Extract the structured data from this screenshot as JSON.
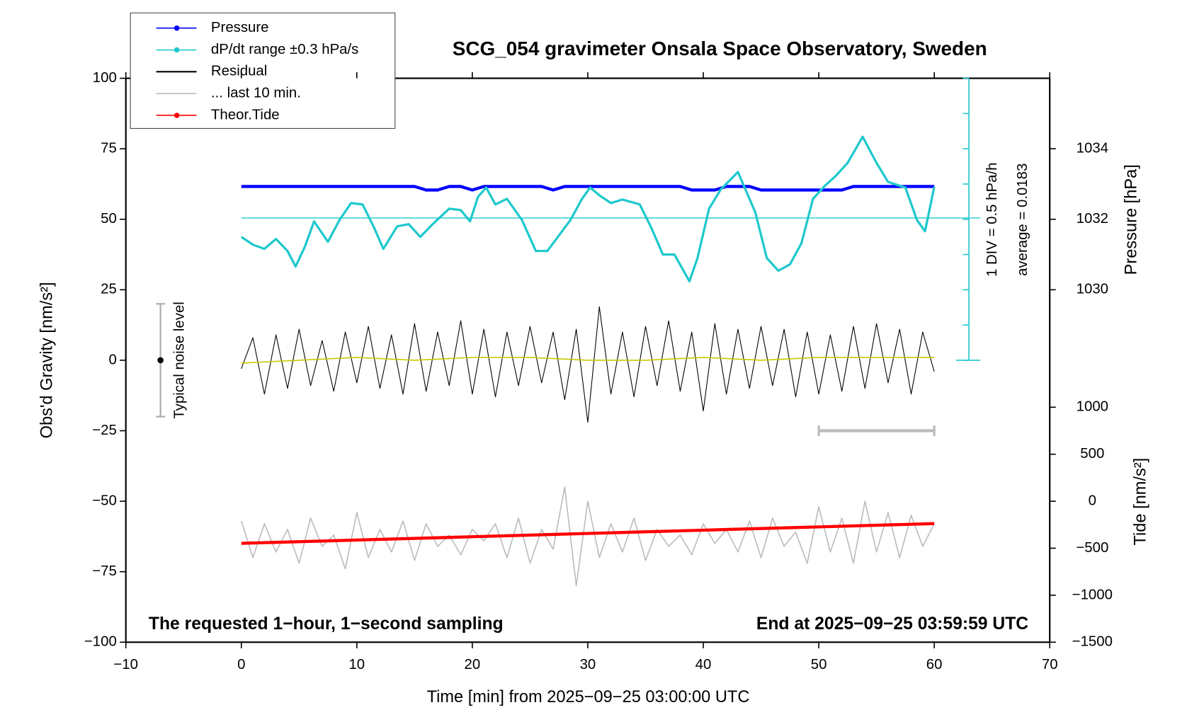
{
  "chart_data": {
    "type": "line",
    "title": "SCG_054 gravimeter Onsala Space Observatory, Sweden",
    "x_label": "Time [min] from 2025−09−25 03:00:00 UTC",
    "y_label": "Obs'd Gravity [nm/s²]",
    "y2_label": "Pressure [hPa]",
    "y4_label": "Tide [nm/s²]",
    "annotations": [
      "1 DIV = 0.5 hPa/h",
      "average = 0.0183",
      "Typical noise level",
      "The requested 1−hour, 1−second sampling",
      "End at 2025−09−25 03:59:59 UTC"
    ],
    "xlim": [
      -10,
      70
    ],
    "xticks": [
      {
        "value": -10,
        "label": "−10"
      },
      0,
      10,
      20,
      30,
      40,
      50,
      60,
      70
    ],
    "ylim": [
      -100,
      100
    ],
    "yticks": [
      {
        "value": -100,
        "label": "−100"
      },
      {
        "value": -75,
        "label": "−75"
      },
      {
        "value": -50,
        "label": "−50"
      },
      {
        "value": -25,
        "label": "−25"
      },
      0,
      25,
      50,
      75,
      100
    ],
    "y2lim": [
      1020,
      1036
    ],
    "y2ticks": [
      1030,
      1032,
      1034
    ],
    "y3lim": [
      -6,
      2
    ],
    "y3ticks": [
      -2,
      -1.5,
      -1,
      -0.5,
      0,
      0.5,
      1,
      1.5,
      2
    ],
    "y3_average": 0.0183,
    "y4lim": [
      -1500,
      4500
    ],
    "y4ticks": [
      {
        "value": -1500,
        "label": "−1500"
      },
      {
        "value": -1000,
        "label": "−1000"
      },
      {
        "value": -500,
        "label": "−500"
      },
      0,
      500,
      1000
    ],
    "noise_bar": {
      "x": -7,
      "low": -20,
      "high": 20,
      "center": 0
    },
    "last10_bar": {
      "x": [
        50,
        60
      ],
      "y": -25
    },
    "legend": "upper left",
    "series": [
      {
        "name": "Pressure",
        "color": "#0000ff",
        "axis": "y2",
        "x": [
          0,
          1,
          2,
          3,
          4,
          5,
          6,
          7,
          8,
          9,
          10,
          11,
          12,
          13,
          14,
          15,
          16,
          17,
          18,
          19,
          20,
          21,
          22,
          23,
          24,
          25,
          26,
          27,
          28,
          29,
          30,
          31,
          32,
          33,
          34,
          35,
          36,
          37,
          38,
          39,
          40,
          41,
          42,
          43,
          44,
          45,
          46,
          47,
          48,
          49,
          50,
          51,
          52,
          53,
          54,
          55,
          56,
          57,
          58,
          59,
          60
        ],
        "values": [
          1032.93,
          1032.93,
          1032.93,
          1032.93,
          1032.93,
          1032.93,
          1032.93,
          1032.93,
          1032.93,
          1032.93,
          1032.93,
          1032.93,
          1032.93,
          1032.93,
          1032.93,
          1032.93,
          1032.83,
          1032.83,
          1032.93,
          1032.93,
          1032.83,
          1032.93,
          1032.93,
          1032.93,
          1032.93,
          1032.93,
          1032.93,
          1032.83,
          1032.93,
          1032.93,
          1032.93,
          1032.93,
          1032.93,
          1032.93,
          1032.93,
          1032.93,
          1032.93,
          1032.93,
          1032.93,
          1032.83,
          1032.83,
          1032.83,
          1032.93,
          1032.93,
          1032.93,
          1032.83,
          1032.83,
          1032.83,
          1032.83,
          1032.83,
          1032.83,
          1032.83,
          1032.83,
          1032.93,
          1032.93,
          1032.93,
          1032.93,
          1032.93,
          1032.93,
          1032.93,
          1032.93
        ]
      },
      {
        "name": "dP/dt range ±0.3 hPa/s",
        "color": "#1ec8cc",
        "axis": "y3",
        "x": [
          0,
          1,
          2,
          3,
          4,
          4.7,
          5.5,
          6.3,
          7.5,
          8.5,
          9.5,
          10.5,
          11.5,
          12.3,
          13.5,
          14.5,
          15.5,
          16.5,
          18,
          19,
          19.8,
          20.5,
          21.2,
          22,
          23,
          24.3,
          25.5,
          26.5,
          27.5,
          28.5,
          29.5,
          30.2,
          31,
          32,
          33,
          34.5,
          35.5,
          36.5,
          37.5,
          38.8,
          39.5,
          40.5,
          41.5,
          43,
          44.5,
          45.5,
          46.5,
          47.5,
          48.5,
          49.5,
          50.5,
          51.5,
          52.5,
          53.8,
          55,
          56,
          57.5,
          58.5,
          59.2,
          60
        ],
        "values": [
          -0.25,
          -0.36,
          -0.42,
          -0.28,
          -0.45,
          -0.67,
          -0.39,
          -0.03,
          -0.32,
          -0.01,
          0.23,
          0.21,
          -0.12,
          -0.42,
          -0.1,
          -0.07,
          -0.25,
          -0.08,
          0.15,
          0.13,
          -0.03,
          0.32,
          0.45,
          0.21,
          0.29,
          -0.01,
          -0.45,
          -0.45,
          -0.23,
          -0.01,
          0.29,
          0.45,
          0.34,
          0.23,
          0.28,
          0.21,
          -0.12,
          -0.5,
          -0.5,
          -0.88,
          -0.55,
          0.15,
          0.42,
          0.67,
          0.1,
          -0.55,
          -0.73,
          -0.64,
          -0.34,
          0.29,
          0.47,
          0.62,
          0.8,
          1.17,
          0.8,
          0.53,
          0.45,
          -0.01,
          -0.17,
          0.46
        ]
      },
      {
        "name": "Residual",
        "color": "#000000",
        "axis": "y",
        "x": [
          0,
          1,
          2,
          3,
          4,
          5,
          6,
          7,
          8,
          9,
          10,
          11,
          12,
          13,
          14,
          15,
          16,
          17,
          18,
          19,
          20,
          21,
          22,
          23,
          24,
          25,
          26,
          27,
          28,
          29,
          30,
          31,
          32,
          33,
          34,
          35,
          36,
          37,
          38,
          39,
          40,
          41,
          42,
          43,
          44,
          45,
          46,
          47,
          48,
          49,
          50,
          51,
          52,
          53,
          54,
          55,
          56,
          57,
          58,
          59,
          60
        ],
        "values": [
          -3,
          8,
          -12,
          9,
          -10,
          11,
          -9,
          7,
          -11,
          10,
          -8,
          12,
          -10,
          9,
          -12,
          13,
          -11,
          10,
          -9,
          14,
          -12,
          11,
          -13,
          10,
          -9,
          12,
          -8,
          10,
          -14,
          11,
          -22,
          19,
          -12,
          10,
          -13,
          12,
          -9,
          14,
          -11,
          10,
          -18,
          13,
          -12,
          11,
          -10,
          12,
          -9,
          11,
          -13,
          10,
          -12,
          9,
          -11,
          12,
          -10,
          13,
          -8,
          11,
          -12,
          10,
          -4
        ]
      },
      {
        "name": "... last 10 min.",
        "color": "#bbbbbb",
        "axis": "y",
        "x": [
          0,
          1,
          2,
          3,
          4,
          5,
          6,
          7,
          8,
          9,
          10,
          11,
          12,
          13,
          14,
          15,
          16,
          17,
          18,
          19,
          20,
          21,
          22,
          23,
          24,
          25,
          26,
          27,
          28,
          29,
          30,
          31,
          32,
          33,
          34,
          35,
          36,
          37,
          38,
          39,
          40,
          41,
          42,
          43,
          44,
          45,
          46,
          47,
          48,
          49,
          50,
          51,
          52,
          53,
          54,
          55,
          56,
          57,
          58,
          59,
          60
        ],
        "values": [
          -57,
          -70,
          -58,
          -68,
          -60,
          -72,
          -56,
          -66,
          -62,
          -74,
          -54,
          -70,
          -60,
          -68,
          -57,
          -71,
          -58,
          -66,
          -62,
          -69,
          -60,
          -64,
          -58,
          -70,
          -56,
          -72,
          -60,
          -67,
          -45,
          -80,
          -50,
          -70,
          -58,
          -68,
          -56,
          -71,
          -60,
          -66,
          -62,
          -69,
          -58,
          -65,
          -60,
          -68,
          -57,
          -70,
          -56,
          -66,
          -61,
          -72,
          -52,
          -68,
          -56,
          -72,
          -50,
          -68,
          -54,
          -70,
          -55,
          -66,
          -58
        ]
      },
      {
        "name": "Theor.Tide",
        "color": "#ff0000",
        "axis": "y4",
        "x": [
          0,
          10,
          20,
          30,
          40,
          50,
          60
        ],
        "values": [
          -448,
          -413,
          -378,
          -343,
          -308,
          -273,
          -238
        ]
      },
      {
        "color": "#c8c800",
        "axis": "y",
        "x": [
          0,
          5,
          10,
          15,
          20,
          25,
          30,
          35,
          40,
          45,
          50,
          55,
          60
        ],
        "values": [
          -1,
          0,
          1,
          0,
          1,
          1,
          0,
          0,
          1,
          0,
          1,
          1,
          1
        ]
      }
    ]
  }
}
